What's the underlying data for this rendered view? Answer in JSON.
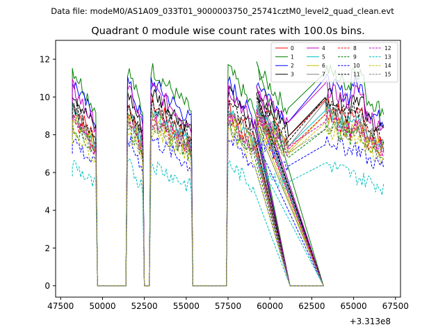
{
  "chart_data": {
    "type": "line",
    "suptitle": "Data file: modeM0/AS1A09_033T01_9000003750_25741cztM0_level2_quad_clean.evt",
    "title": "Quadrant 0 module wise count rates with 100.0s bins.",
    "xlabel": "",
    "ylabel": "",
    "x_offset_label": "+3.313e8",
    "xlim": [
      47200,
      67800
    ],
    "ylim": [
      -0.6,
      13.0
    ],
    "x_ticks": [
      47500,
      50000,
      52500,
      55000,
      57500,
      60000,
      62500,
      65000,
      67500
    ],
    "y_ticks": [
      0,
      2,
      4,
      6,
      8,
      10,
      12
    ],
    "segments": [
      [
        48200,
        49600
      ],
      [
        51500,
        52400
      ],
      [
        52900,
        55300
      ],
      [
        57500,
        59100
      ],
      [
        59200,
        61100
      ],
      [
        63300,
        66800
      ]
    ],
    "gaps": [
      [
        49700,
        51400
      ],
      [
        52500,
        52800
      ],
      [
        55400,
        57400
      ],
      [
        61200,
        63200
      ]
    ],
    "legend": {
      "location": "top-right",
      "columns": 4
    },
    "series": [
      {
        "name": "0",
        "color": "#ff0000",
        "dash": "solid",
        "level": 8.6
      },
      {
        "name": "1",
        "color": "#008000",
        "dash": "solid",
        "level": 10.3
      },
      {
        "name": "2",
        "color": "#0000ff",
        "dash": "solid",
        "level": 9.7
      },
      {
        "name": "3",
        "color": "#000000",
        "dash": "solid",
        "level": 9.2
      },
      {
        "name": "4",
        "color": "#bf00bf",
        "dash": "solid",
        "level": 9.4
      },
      {
        "name": "5",
        "color": "#00bfbf",
        "dash": "solid",
        "level": 8.3
      },
      {
        "name": "6",
        "color": "#bfbf00",
        "dash": "solid",
        "level": 8.1
      },
      {
        "name": "7",
        "color": "#808080",
        "dash": "solid",
        "level": 8.4
      },
      {
        "name": "8",
        "color": "#ff0000",
        "dash": "dashed",
        "level": 7.9
      },
      {
        "name": "9",
        "color": "#008000",
        "dash": "dashed",
        "level": 7.7
      },
      {
        "name": "10",
        "color": "#0000ff",
        "dash": "dashed",
        "level": 7.0
      },
      {
        "name": "11",
        "color": "#000000",
        "dash": "dashed",
        "level": 8.7
      },
      {
        "name": "12",
        "color": "#bf00bf",
        "dash": "dashed",
        "level": 8.0
      },
      {
        "name": "13",
        "color": "#00bfbf",
        "dash": "dashed",
        "level": 5.8
      },
      {
        "name": "14",
        "color": "#bfbf00",
        "dash": "dashed",
        "level": 7.5
      },
      {
        "name": "15",
        "color": "#808080",
        "dash": "dashed",
        "level": 7.8
      }
    ]
  }
}
